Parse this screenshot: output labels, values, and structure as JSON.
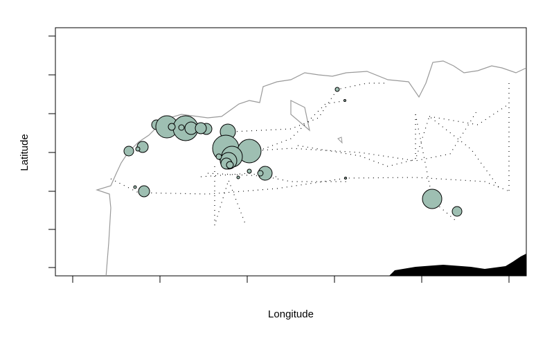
{
  "x_label": "Longitude",
  "y_label": "Latitude"
}
